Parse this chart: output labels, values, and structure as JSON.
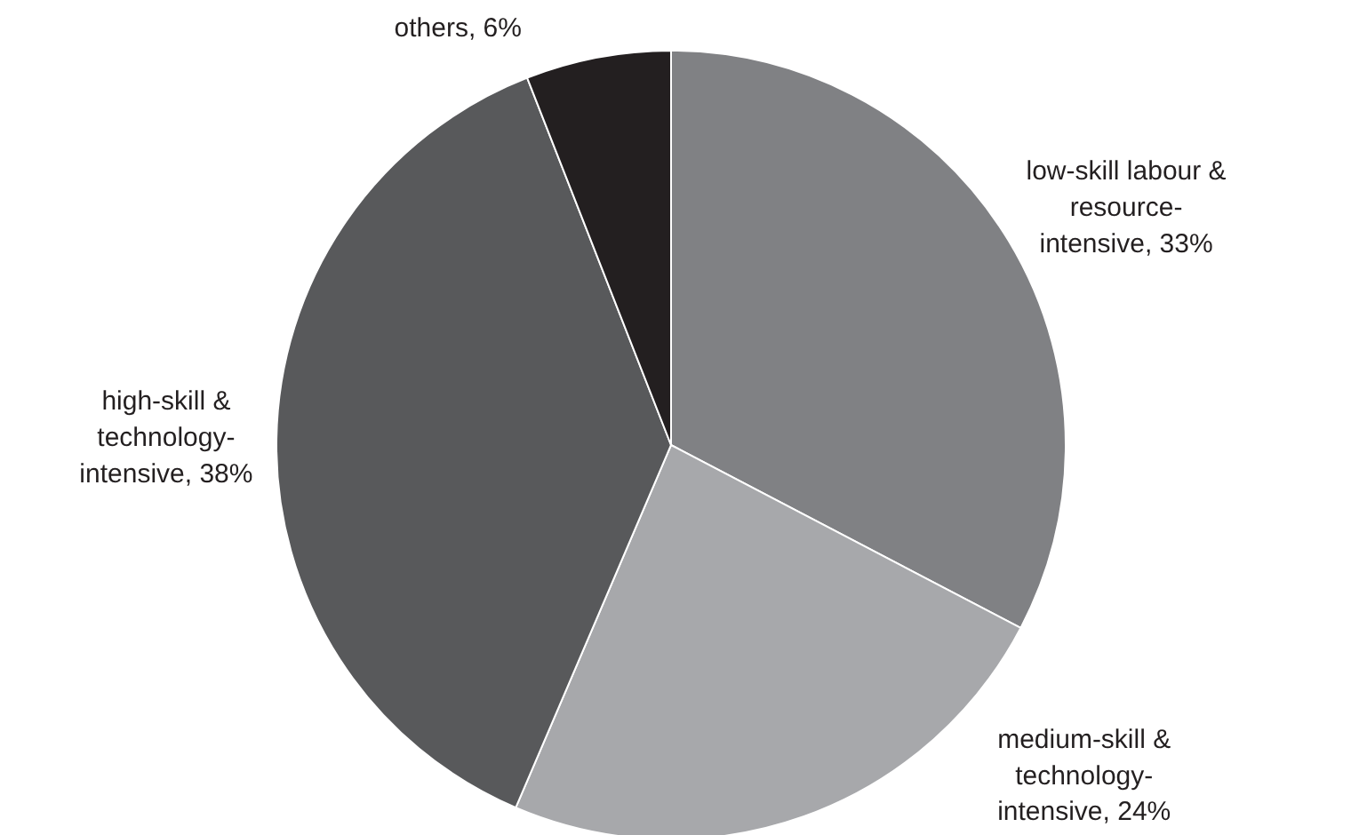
{
  "chart_data": {
    "type": "pie",
    "categories": [
      "low-skill labour & resource-intensive, 33%",
      "medium-skill & technology-intensive, 24%",
      "high-skill & technology-intensive, 38%",
      "others, 6%"
    ],
    "values": [
      33,
      24,
      38,
      6
    ],
    "colors": [
      "#808184",
      "#a7a8ab",
      "#58595b",
      "#231f20"
    ]
  }
}
